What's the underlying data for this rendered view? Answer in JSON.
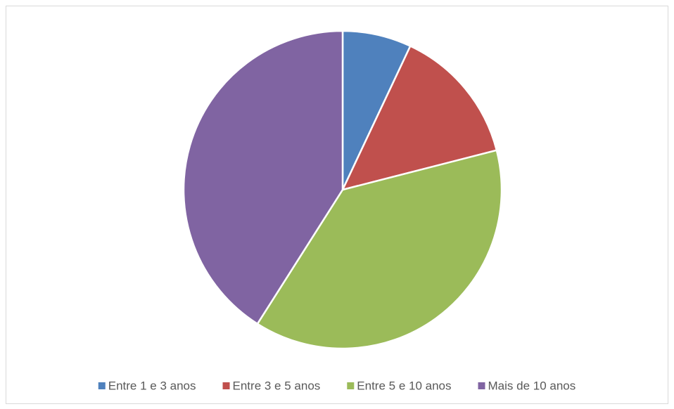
{
  "chart_data": {
    "type": "pie",
    "categories": [
      "Entre 1 e 3 anos",
      "Entre 3 e 5 anos",
      "Entre 5 e 10 anos",
      "Mais de 10 anos"
    ],
    "values": [
      7,
      14,
      38,
      41
    ],
    "colors": [
      "#4f81bd",
      "#c0504d",
      "#9bbb59",
      "#8064a2"
    ],
    "legend": "bottom"
  }
}
